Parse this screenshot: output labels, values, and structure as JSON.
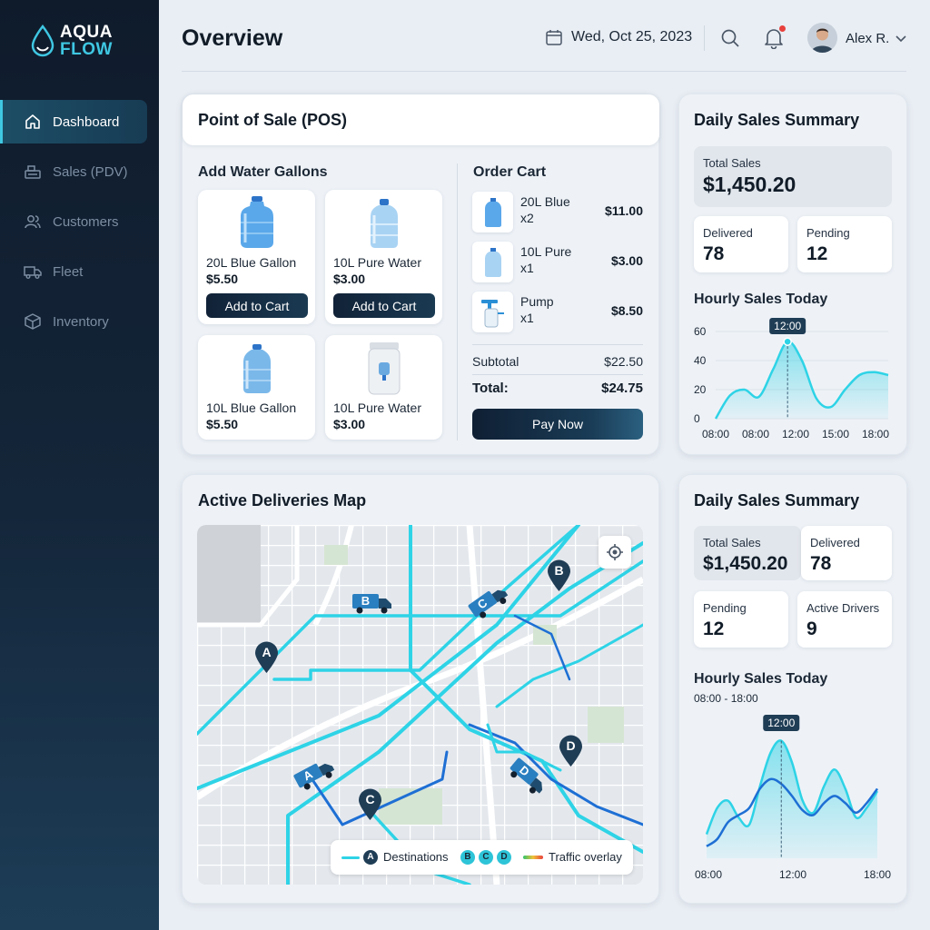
{
  "app": {
    "logo_line1": "AQUA",
    "logo_line2": "FLOW",
    "brand_color": "#3fc7e2"
  },
  "sidebar": {
    "items": [
      {
        "label": "Dashboard",
        "icon": "home-icon",
        "active": true
      },
      {
        "label": "Sales (PDV)",
        "icon": "cash-register-icon",
        "active": false
      },
      {
        "label": "Customers",
        "icon": "users-icon",
        "active": false
      },
      {
        "label": "Fleet",
        "icon": "truck-icon",
        "active": false
      },
      {
        "label": "Inventory",
        "icon": "box-icon",
        "active": false
      }
    ]
  },
  "header": {
    "title": "Overview",
    "date": "Wed, Oct 25, 2023",
    "user": "Alex R."
  },
  "pos": {
    "title": "Point of Sale (POS)",
    "gallons_title": "Add Water Gallons",
    "products": [
      {
        "name": "20L Blue Gallon",
        "price": "$5.50",
        "button": "Add to Cart"
      },
      {
        "name": "10L Pure Water",
        "price": "$3.00",
        "button": "Add to Cart"
      },
      {
        "name": "10L Blue Gallon",
        "price": "$5.50"
      },
      {
        "name": "10L Pure Water",
        "price": "$3.00"
      }
    ],
    "cart_title": "Order Cart",
    "cart_items": [
      {
        "name": "20L Blue",
        "qty": "x2",
        "price": "$11.00"
      },
      {
        "name": "10L Pure",
        "qty": "x1",
        "price": "$3.00"
      },
      {
        "name": "Pump",
        "qty": "x1",
        "price": "$8.50"
      }
    ],
    "subtotal_label": "Subtotal",
    "subtotal": "$22.50",
    "total_label": "Total:",
    "total": "$24.75",
    "pay_button": "Pay Now"
  },
  "summary1": {
    "title": "Daily Sales Summary",
    "total_label": "Total Sales",
    "total": "$1,450.20",
    "delivered_label": "Delivered",
    "delivered": "78",
    "pending_label": "Pending",
    "pending": "12",
    "chart_title": "Hourly Sales Today",
    "tooltip": "12:00"
  },
  "summary2": {
    "title": "Daily Sales Summary",
    "total_label": "Total Sales",
    "total": "$1,450.20",
    "delivered_label": "Delivered",
    "delivered": "78",
    "pending_label": "Pending",
    "pending": "12",
    "drivers_label": "Active Drivers",
    "drivers": "9",
    "chart_title": "Hourly Sales Today",
    "chart_range": "08:00 - 18:00",
    "tooltip": "12:00"
  },
  "map": {
    "title": "Active Deliveries Map",
    "markers": [
      "A",
      "B",
      "C",
      "D"
    ],
    "trucks": [
      "A",
      "B",
      "C",
      "D"
    ],
    "legend_destinations": "Destinations",
    "legend_traffic": "Traffic overlay",
    "route_color": "#2ed3e6"
  },
  "chart_data": [
    {
      "type": "area",
      "title": "Hourly Sales Today",
      "x": [
        "08:00",
        "09:00",
        "10:00",
        "11:00",
        "11:30",
        "12:00",
        "12:30",
        "13:00",
        "14:00",
        "15:00",
        "16:00",
        "17:00",
        "18:00"
      ],
      "values": [
        0,
        16,
        20,
        15,
        34,
        53,
        40,
        14,
        8,
        20,
        30,
        32,
        30
      ],
      "x_tick_labels": [
        "08:00",
        "08:00",
        "12:00",
        "15:00",
        "18:00"
      ],
      "y_ticks": [
        0,
        20,
        40,
        60
      ],
      "ylim": [
        0,
        60
      ],
      "highlight": "12:00",
      "grid": true
    },
    {
      "type": "area",
      "title": "Hourly Sales Today",
      "x_tick_labels": [
        "08:00",
        "12:00",
        "18:00"
      ],
      "series": [
        {
          "values": [
            20,
            42,
            48,
            34,
            28,
            60,
            88,
            98,
            80,
            48,
            38,
            60,
            74,
            58,
            34,
            42,
            56
          ]
        },
        {
          "values": [
            10,
            16,
            30,
            36,
            42,
            58,
            66,
            62,
            52,
            40,
            36,
            46,
            52,
            46,
            38,
            46,
            58
          ]
        }
      ],
      "highlight": "12:00",
      "grid": false
    }
  ]
}
